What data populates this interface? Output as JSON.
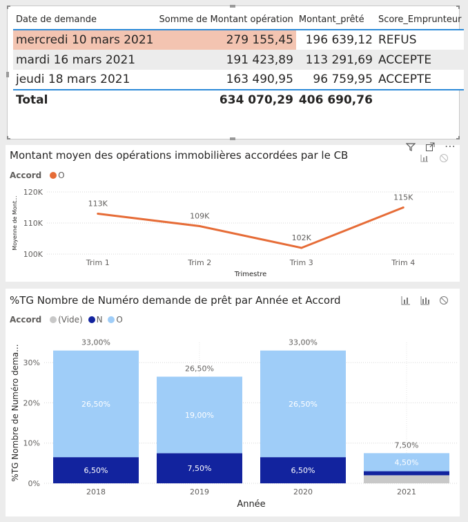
{
  "table": {
    "headers": [
      "Date de demande",
      "Somme de Montant opération",
      "Montant_prêté",
      "Score_Emprunteur"
    ],
    "rows": [
      [
        "mercredi 10 mars 2021",
        "279 155,45",
        "196 639,12",
        "REFUS"
      ],
      [
        "mardi 16 mars 2021",
        "191 423,89",
        "113 291,69",
        "ACCEPTE"
      ],
      [
        "jeudi 18 mars 2021",
        "163 490,95",
        "96 759,95",
        "ACCEPTE"
      ]
    ],
    "total": [
      "Total",
      "634 070,29",
      "406 690,76",
      ""
    ]
  },
  "chart_data": [
    {
      "type": "line",
      "title": "Montant moyen des opérations immobilières accordées par le CB",
      "legend_title": "Accord",
      "legend": [
        {
          "name": "O",
          "color": "#e66c37"
        }
      ],
      "categories": [
        "Trim 1",
        "Trim 2",
        "Trim 3",
        "Trim 4"
      ],
      "values": [
        113,
        109,
        102,
        115
      ],
      "data_labels": [
        "113K",
        "109K",
        "102K",
        "115K"
      ],
      "ylim": [
        100,
        120
      ],
      "yticks": [
        "100K",
        "110K",
        "120K"
      ],
      "xlabel": "Trimestre",
      "ylabel": "Moyenne de Mont...",
      "color": "#e66c37"
    },
    {
      "type": "bar",
      "stacked": true,
      "title": "%TG Nombre de Numéro demande de prêt par Année et Accord",
      "legend_title": "Accord",
      "categories": [
        "2018",
        "2019",
        "2020",
        "2021"
      ],
      "series": [
        {
          "name": "(Vide)",
          "color": "#c8c8c8",
          "values": [
            0,
            0,
            0,
            2.0
          ]
        },
        {
          "name": "N",
          "color": "#12239e",
          "values": [
            6.5,
            7.5,
            6.5,
            1.0
          ]
        },
        {
          "name": "O",
          "color": "#9fcdf8",
          "values": [
            26.5,
            19.0,
            26.5,
            4.5
          ]
        }
      ],
      "segment_labels": {
        "N": [
          "6,50%",
          "7,50%",
          "6,50%",
          ""
        ],
        "O": [
          "26,50%",
          "19,00%",
          "26,50%",
          "4,50%"
        ]
      },
      "total_labels": [
        "33,00%",
        "26,50%",
        "33,00%",
        "7,50%"
      ],
      "ylim": [
        0,
        35
      ],
      "yticks": [
        "0%",
        "10%",
        "20%",
        "30%"
      ],
      "xlabel": "Année",
      "ylabel": "%TG Nombre de Numéro dema..."
    }
  ]
}
